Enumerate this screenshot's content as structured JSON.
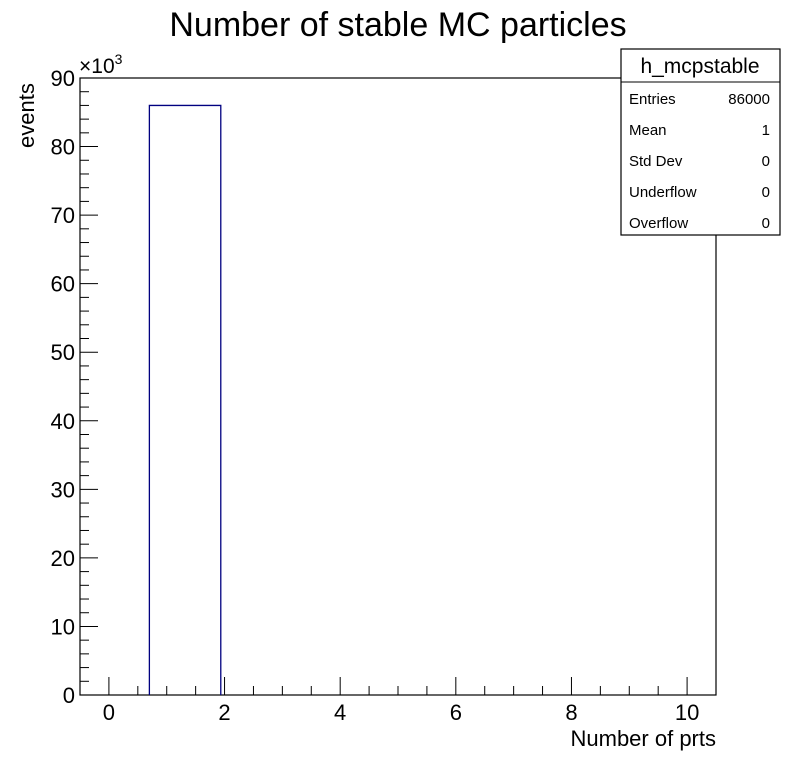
{
  "chart_data": {
    "type": "bar",
    "title": "Number of stable MC particles",
    "xlabel": "Number of prts",
    "ylabel": "events",
    "y_multiplier_base": "×10",
    "y_multiplier_exp": "3",
    "xlim": [
      -0.5,
      10.5
    ],
    "ylim": [
      0,
      90
    ],
    "x_ticks": [
      0,
      2,
      4,
      6,
      8,
      10
    ],
    "y_ticks": [
      0,
      10,
      20,
      30,
      40,
      50,
      60,
      70,
      80,
      90
    ],
    "bins": [
      {
        "low": 0.7,
        "high": 1.935,
        "value": 86.0
      }
    ],
    "line_color": "#000080",
    "grid": false,
    "stats_box": {
      "name": "h_mcpstable",
      "rows": [
        {
          "label": "Entries",
          "value": "86000"
        },
        {
          "label": "Mean",
          "value": "1"
        },
        {
          "label": "Std Dev",
          "value": "0"
        },
        {
          "label": "Underflow",
          "value": "0"
        },
        {
          "label": "Overflow",
          "value": "0"
        }
      ],
      "position": "top-right"
    }
  }
}
